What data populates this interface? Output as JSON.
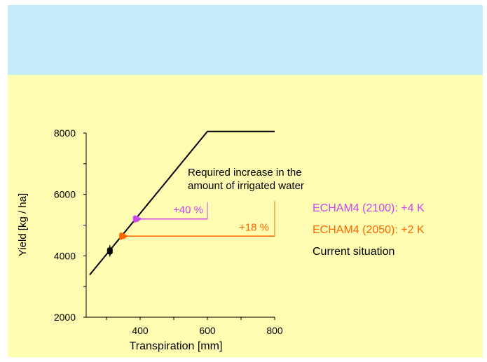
{
  "colors": {
    "top_band": "#c4ecfb",
    "panel": "#fefdb2",
    "purple": "#cc44ee",
    "orange": "#ff6600",
    "black": "#000000"
  },
  "chart_data": {
    "type": "line",
    "xlabel": "Transpiration [mm]",
    "ylabel": "Yield [kg / ha]",
    "xlim": [
      250,
      800
    ],
    "ylim": [
      2000,
      8000
    ],
    "x_ticks": [
      400,
      600,
      800
    ],
    "y_ticks": [
      2000,
      4000,
      6000,
      8000
    ],
    "grid": false,
    "series": [
      {
        "x": [
          250,
          600,
          800
        ],
        "y": [
          3380,
          8050,
          8050
        ]
      }
    ],
    "points": [
      {
        "key": "current",
        "x": 310,
        "y": 4160,
        "color": "#000000"
      },
      {
        "key": "echam2050",
        "x": 346,
        "y": 4640,
        "color": "#ff6600"
      },
      {
        "key": "echam2100",
        "x": 387,
        "y": 5200,
        "color": "#cc44ee"
      }
    ],
    "arrows": [
      {
        "label": "+40 %",
        "x_from": 600,
        "x_to": 387,
        "y": 5200,
        "color": "#cc44ee"
      },
      {
        "label": "+18 %",
        "x_from": 800,
        "x_to": 346,
        "y": 4640,
        "color": "#ff6600"
      }
    ],
    "annotation": [
      "Required increase in the",
      "amount of irrigated water"
    ],
    "legend": [
      {
        "label": "ECHAM4 (2100): +4 K",
        "color": "#cc44ee"
      },
      {
        "label": "ECHAM4 (2050): +2 K",
        "color": "#ff6600"
      },
      {
        "label": "Current situation",
        "color": "#000000"
      }
    ]
  }
}
